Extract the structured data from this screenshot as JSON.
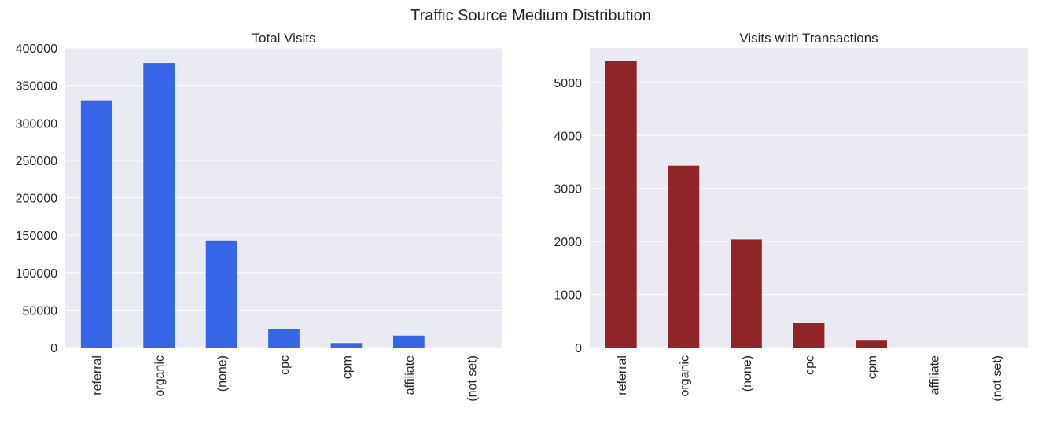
{
  "title": "Traffic Source Medium Distribution",
  "colors": {
    "left_bar": "#2b5fe6",
    "right_bar": "#8b1a1d",
    "plot_bg": "#eaeaf2",
    "grid": "#ffffff",
    "text": "#262626"
  },
  "chart_data": [
    {
      "type": "bar",
      "title": "Total Visits",
      "xlabel": "",
      "ylabel": "",
      "categories": [
        "referral",
        "organic",
        "(none)",
        "cpc",
        "cpm",
        "affiliate",
        "(not set)"
      ],
      "values": [
        330000,
        380000,
        143000,
        25000,
        6000,
        16000,
        0
      ],
      "ylim": [
        0,
        400000
      ],
      "yticks": [
        0,
        50000,
        100000,
        150000,
        200000,
        250000,
        300000,
        350000,
        400000
      ],
      "grid": true
    },
    {
      "type": "bar",
      "title": "Visits with Transactions",
      "xlabel": "",
      "ylabel": "",
      "categories": [
        "referral",
        "organic",
        "(none)",
        "cpc",
        "cpm",
        "affiliate",
        "(not set)"
      ],
      "values": [
        5410,
        3430,
        2040,
        460,
        130,
        0,
        0
      ],
      "ylim": [
        0,
        5650
      ],
      "yticks": [
        0,
        1000,
        2000,
        3000,
        4000,
        5000
      ],
      "grid": true
    }
  ]
}
